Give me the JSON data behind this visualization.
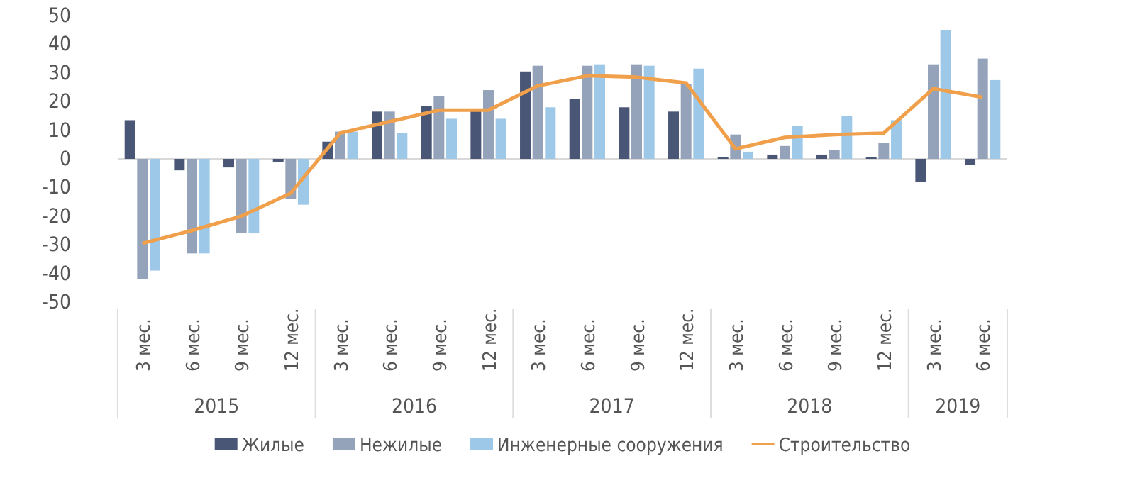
{
  "chart_data": {
    "type": "bar",
    "categories": [
      "3 мес.",
      "6 мес.",
      "9 мес.",
      "12 мес.",
      "3 мес.",
      "6 мес.",
      "9 мес.",
      "12 мес.",
      "3 мес.",
      "6 мес.",
      "9 мес.",
      "12 мес.",
      "3 мес.",
      "6 мес.",
      "9 мес.",
      "12 мес.",
      "3 мес.",
      "6 мес."
    ],
    "series": [
      {
        "name": "Жилые",
        "color": "#4a5675",
        "values": [
          13.5,
          -4,
          -3,
          -1,
          6,
          16.5,
          18.5,
          17,
          30.5,
          21,
          18,
          16.5,
          0.5,
          1.5,
          1.5,
          0.5,
          -8,
          -2
        ]
      },
      {
        "name": "Нежилые",
        "color": "#94a3ba",
        "values": [
          -42,
          -33,
          -26,
          -14,
          9.5,
          16.5,
          22,
          24,
          32.5,
          32.5,
          33,
          26,
          8.5,
          4.5,
          3,
          5.5,
          33,
          35
        ]
      },
      {
        "name": "Инженерные сооружения",
        "color": "#9dc8e8",
        "values": [
          -39,
          -33,
          -26,
          -16,
          9.5,
          9,
          14,
          14,
          18,
          33,
          32.5,
          31.5,
          2.5,
          11.5,
          15,
          13.5,
          45,
          27.5
        ]
      },
      {
        "name": "Строительство",
        "type": "line",
        "color": "#f0a04b",
        "values": [
          -29.5,
          -25,
          -20,
          -12,
          9,
          13,
          17,
          17,
          25.5,
          29,
          28.5,
          26.5,
          3.5,
          7.5,
          8.5,
          9,
          24.5,
          21.5
        ]
      }
    ],
    "annotations": [
      "2015",
      "2016",
      "2017",
      "2018",
      "2019"
    ],
    "ylim": [
      -50,
      50
    ],
    "yticks": [
      -50,
      -40,
      -30,
      -20,
      -10,
      0,
      10,
      20,
      30,
      40,
      50
    ],
    "legend": "bottom",
    "marker": "none"
  }
}
